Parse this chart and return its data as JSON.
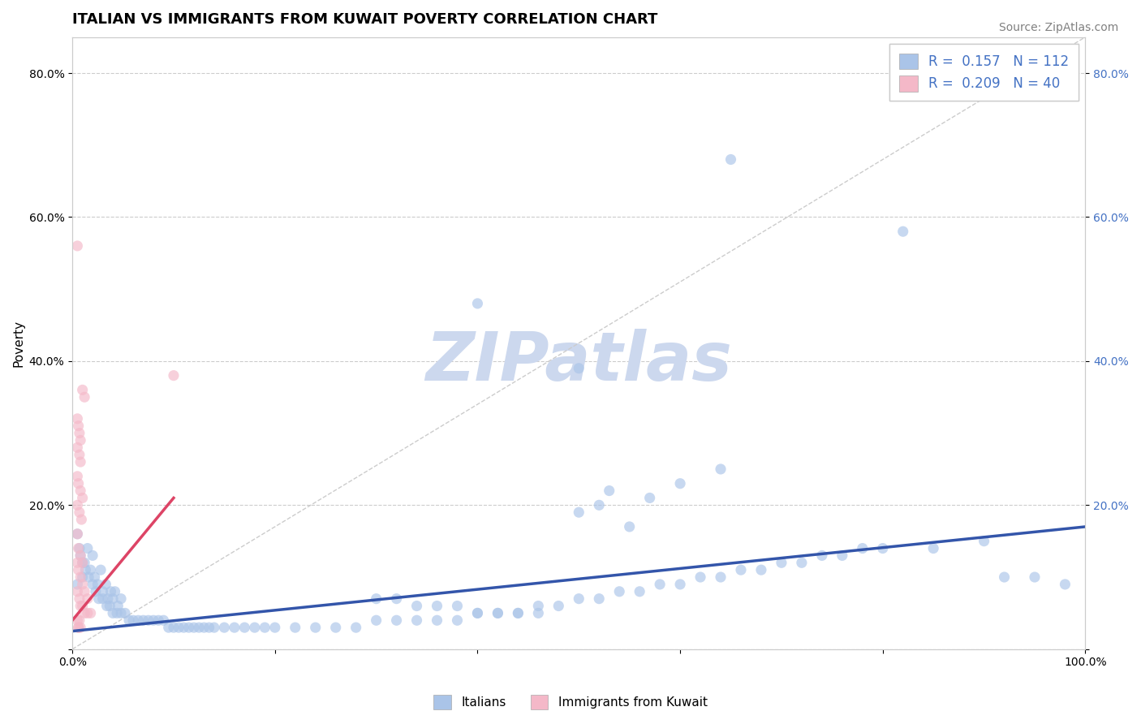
{
  "title": "ITALIAN VS IMMIGRANTS FROM KUWAIT POVERTY CORRELATION CHART",
  "source": "Source: ZipAtlas.com",
  "ylabel": "Poverty",
  "watermark": "ZIPatlas",
  "legend_entries": [
    {
      "label": "R =  0.157   N = 112",
      "color": "#aac4e8"
    },
    {
      "label": "R =  0.209   N = 40",
      "color": "#f4b8c8"
    }
  ],
  "legend_names": [
    "Italians",
    "Immigrants from Kuwait"
  ],
  "legend_colors": [
    "#aac4e8",
    "#f4b8c8"
  ],
  "xlim": [
    0.0,
    1.0
  ],
  "ylim": [
    0.0,
    0.85
  ],
  "xticks": [
    0.0,
    0.2,
    0.4,
    0.6,
    0.8,
    1.0
  ],
  "xticklabels": [
    "0.0%",
    "",
    "",
    "",
    "",
    "100.0%"
  ],
  "yticks": [
    0.0,
    0.2,
    0.4,
    0.6,
    0.8
  ],
  "yticklabels": [
    "",
    "20.0%",
    "40.0%",
    "60.0%",
    "80.0%"
  ],
  "right_yticklabels": [
    "",
    "20.0%",
    "40.0%",
    "60.0%",
    "80.0%"
  ],
  "scatter_blue_x": [
    0.005,
    0.008,
    0.01,
    0.012,
    0.015,
    0.018,
    0.02,
    0.022,
    0.025,
    0.028,
    0.03,
    0.033,
    0.035,
    0.038,
    0.04,
    0.042,
    0.045,
    0.048,
    0.005,
    0.007,
    0.01,
    0.013,
    0.016,
    0.02,
    0.023,
    0.026,
    0.03,
    0.034,
    0.037,
    0.04,
    0.044,
    0.048,
    0.052,
    0.056,
    0.06,
    0.065,
    0.07,
    0.075,
    0.08,
    0.085,
    0.09,
    0.095,
    0.1,
    0.105,
    0.11,
    0.115,
    0.12,
    0.125,
    0.13,
    0.135,
    0.14,
    0.15,
    0.16,
    0.17,
    0.18,
    0.19,
    0.2,
    0.22,
    0.24,
    0.26,
    0.28,
    0.3,
    0.32,
    0.34,
    0.36,
    0.38,
    0.4,
    0.42,
    0.44,
    0.46,
    0.48,
    0.5,
    0.52,
    0.54,
    0.56,
    0.58,
    0.6,
    0.62,
    0.64,
    0.66,
    0.68,
    0.7,
    0.72,
    0.74,
    0.76,
    0.78,
    0.8,
    0.85,
    0.9,
    0.92,
    0.95,
    0.98,
    0.65,
    0.82,
    0.4,
    0.5,
    0.53,
    0.57,
    0.6,
    0.64,
    0.5,
    0.52,
    0.55,
    0.3,
    0.32,
    0.34,
    0.36,
    0.38,
    0.4,
    0.42,
    0.44,
    0.46
  ],
  "scatter_blue_y": [
    0.09,
    0.13,
    0.1,
    0.12,
    0.14,
    0.11,
    0.13,
    0.1,
    0.09,
    0.11,
    0.08,
    0.09,
    0.07,
    0.08,
    0.07,
    0.08,
    0.06,
    0.07,
    0.16,
    0.14,
    0.12,
    0.11,
    0.1,
    0.09,
    0.08,
    0.07,
    0.07,
    0.06,
    0.06,
    0.05,
    0.05,
    0.05,
    0.05,
    0.04,
    0.04,
    0.04,
    0.04,
    0.04,
    0.04,
    0.04,
    0.04,
    0.03,
    0.03,
    0.03,
    0.03,
    0.03,
    0.03,
    0.03,
    0.03,
    0.03,
    0.03,
    0.03,
    0.03,
    0.03,
    0.03,
    0.03,
    0.03,
    0.03,
    0.03,
    0.03,
    0.03,
    0.04,
    0.04,
    0.04,
    0.04,
    0.04,
    0.05,
    0.05,
    0.05,
    0.06,
    0.06,
    0.07,
    0.07,
    0.08,
    0.08,
    0.09,
    0.09,
    0.1,
    0.1,
    0.11,
    0.11,
    0.12,
    0.12,
    0.13,
    0.13,
    0.14,
    0.14,
    0.14,
    0.15,
    0.1,
    0.1,
    0.09,
    0.68,
    0.58,
    0.48,
    0.39,
    0.22,
    0.21,
    0.23,
    0.25,
    0.19,
    0.2,
    0.17,
    0.07,
    0.07,
    0.06,
    0.06,
    0.06,
    0.05,
    0.05,
    0.05,
    0.05
  ],
  "scatter_pink_x": [
    0.005,
    0.007,
    0.008,
    0.01,
    0.012,
    0.015,
    0.018,
    0.005,
    0.006,
    0.008,
    0.01,
    0.012,
    0.015,
    0.005,
    0.006,
    0.008,
    0.01,
    0.005,
    0.007,
    0.009,
    0.005,
    0.006,
    0.008,
    0.01,
    0.005,
    0.007,
    0.008,
    0.005,
    0.006,
    0.007,
    0.008,
    0.01,
    0.012,
    0.1,
    0.005,
    0.007,
    0.006,
    0.008,
    0.005,
    0.006
  ],
  "scatter_pink_y": [
    0.08,
    0.07,
    0.06,
    0.06,
    0.05,
    0.05,
    0.05,
    0.12,
    0.11,
    0.1,
    0.09,
    0.08,
    0.07,
    0.16,
    0.14,
    0.13,
    0.12,
    0.2,
    0.19,
    0.18,
    0.24,
    0.23,
    0.22,
    0.21,
    0.28,
    0.27,
    0.26,
    0.32,
    0.31,
    0.3,
    0.29,
    0.36,
    0.35,
    0.38,
    0.04,
    0.04,
    0.03,
    0.03,
    0.56,
    0.03
  ],
  "trend_blue_x0": 0.0,
  "trend_blue_y0": 0.025,
  "trend_blue_x1": 1.0,
  "trend_blue_y1": 0.17,
  "trend_pink_x0": 0.0,
  "trend_pink_y0": 0.04,
  "trend_pink_x1": 0.1,
  "trend_pink_y1": 0.21,
  "trend_blue_color": "#3355aa",
  "trend_pink_color": "#dd4466",
  "diag_color": "#cccccc",
  "grid_color": "#cccccc",
  "bg_color": "#ffffff",
  "title_fontsize": 13,
  "tick_fontsize": 10,
  "source_fontsize": 10,
  "watermark_color": "#ccd8ee",
  "watermark_fontsize": 60
}
